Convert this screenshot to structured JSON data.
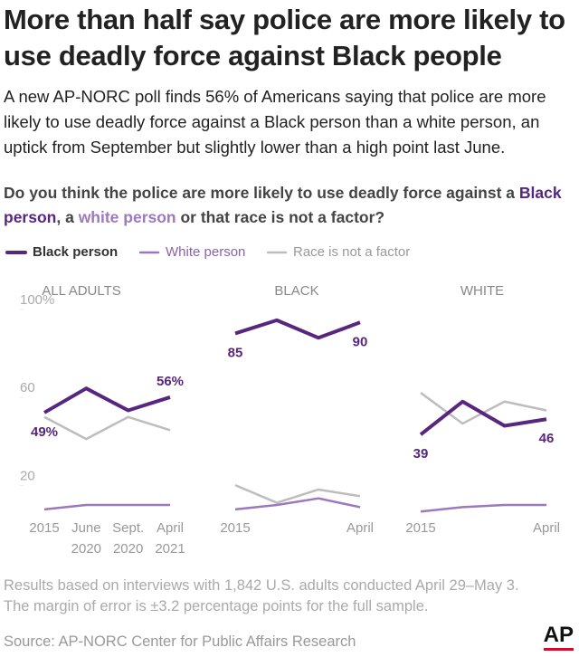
{
  "title": "More than half say police are more likely to use deadly force against Black people",
  "subtitle": "A new AP-NORC poll finds 56% of Americans saying that police are more likely to use deadly force against a Black person than a white person, an uptick from September but slightly lower than a high point last June.",
  "question": [
    "Do you think the police are more likely to use deadly force against a ",
    "Black person",
    ", a ",
    "white person",
    " or that race is not a factor?"
  ],
  "notes": [
    "Results based on interviews with 1,842 U.S. adults conducted April 29–May 3.",
    "The margin of error is ±3.2 percentage points for the full sample."
  ],
  "source": "Source: AP-NORC Center for Public Affairs Research",
  "credit": "AP",
  "chart_data": [
    {
      "type": "line",
      "title": "ALL ADULTS",
      "categories": [
        "2015",
        "June 2020",
        "Sept. 2020",
        "April 2021"
      ],
      "ylim": [
        0,
        100
      ],
      "yticks": [
        {
          "value": 100,
          "label": "100%"
        },
        60,
        20
      ],
      "series": [
        {
          "name": "Black person",
          "color": "#57267e",
          "values": [
            49,
            60,
            50,
            56
          ],
          "value_labels": [
            "49%",
            null,
            null,
            "56%"
          ]
        },
        {
          "name": "White person",
          "color": "#9d78bd",
          "values": [
            5,
            7,
            7,
            7
          ]
        },
        {
          "name": "Race is not a factor",
          "color": "#bdbdbd",
          "values": [
            47,
            37,
            47,
            41
          ]
        }
      ]
    },
    {
      "type": "line",
      "title": "BLACK",
      "categories": [
        "2015",
        null,
        null,
        "April"
      ],
      "ylim": [
        0,
        100
      ],
      "series": [
        {
          "color": "#57267e",
          "values": [
            85,
            91,
            83,
            90
          ],
          "value_labels": [
            "85",
            null,
            null,
            "90"
          ]
        },
        {
          "color": "#9d78bd",
          "values": [
            5,
            7,
            10,
            6
          ]
        },
        {
          "color": "#bdbdbd",
          "values": [
            16,
            8,
            14,
            11
          ]
        }
      ]
    },
    {
      "type": "line",
      "title": "WHITE",
      "categories": [
        "2015",
        null,
        null,
        "April"
      ],
      "ylim": [
        0,
        100
      ],
      "series": [
        {
          "color": "#57267e",
          "values": [
            39,
            54,
            43,
            46
          ],
          "value_labels": [
            "39",
            null,
            null,
            "46"
          ]
        },
        {
          "color": "#9d78bd",
          "values": [
            4,
            6,
            7,
            7
          ]
        },
        {
          "color": "#bdbdbd",
          "values": [
            58,
            44,
            54,
            50
          ]
        }
      ]
    }
  ]
}
